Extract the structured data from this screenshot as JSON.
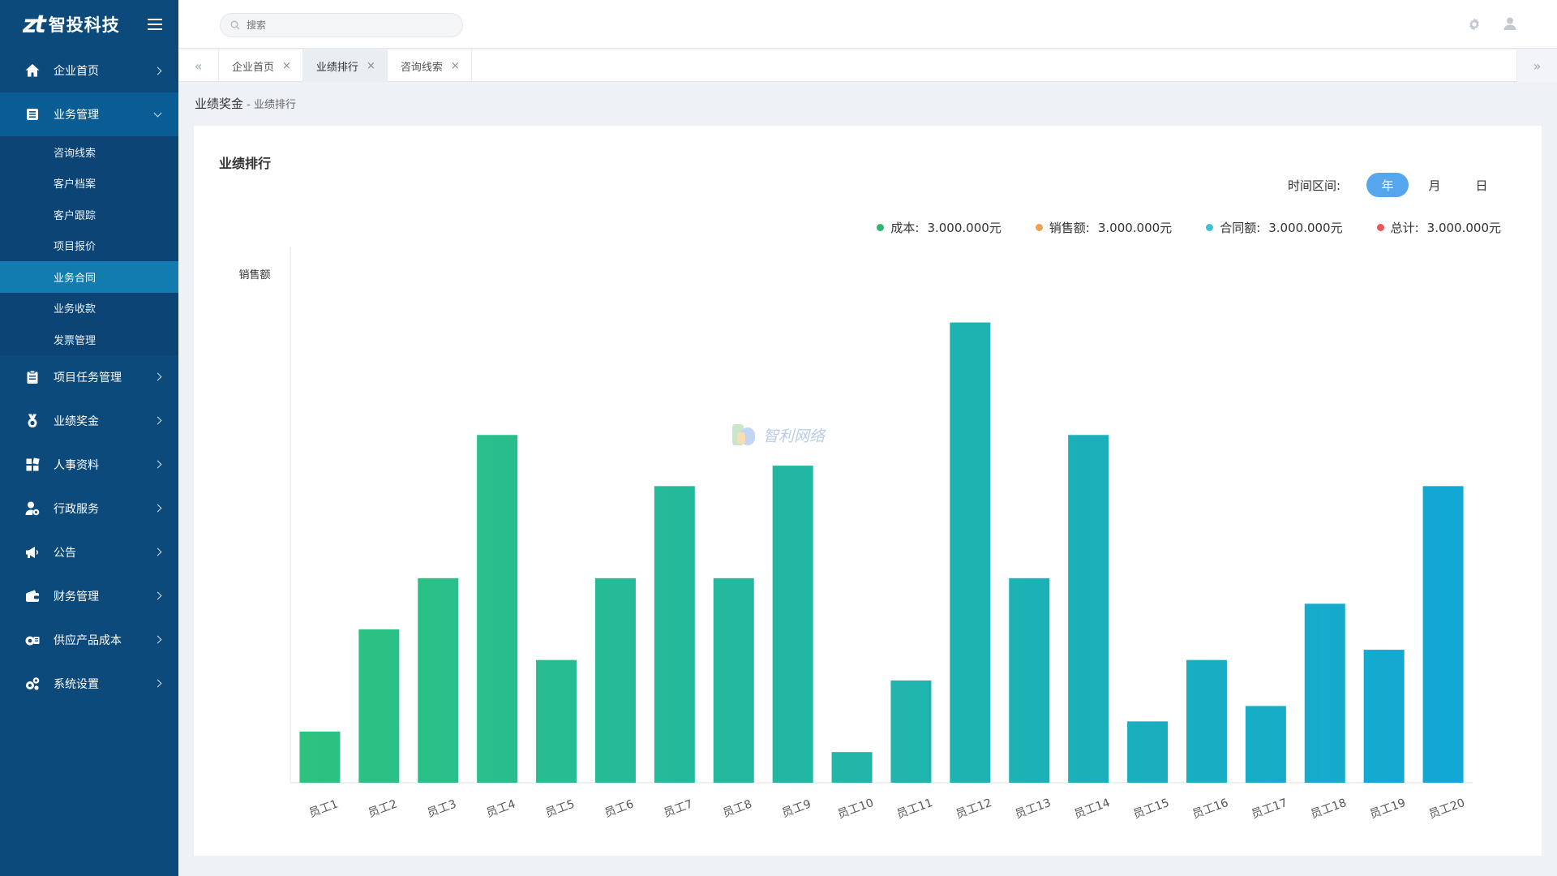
{
  "brand": {
    "mark": "zt",
    "name": "智投科技"
  },
  "search": {
    "placeholder": "搜索"
  },
  "sidebar": {
    "items": [
      {
        "label": "企业首页",
        "icon": "home-icon"
      },
      {
        "label": "业务管理",
        "icon": "list-icon",
        "open": true,
        "children": [
          "咨询线索",
          "客户档案",
          "客户跟踪",
          "项目报价",
          "业务合同",
          "业务收款",
          "发票管理"
        ],
        "active_child": "业务合同"
      },
      {
        "label": "项目任务管理",
        "icon": "clipboard-icon"
      },
      {
        "label": "业绩奖金",
        "icon": "medal-icon"
      },
      {
        "label": "人事资料",
        "icon": "grid-icon"
      },
      {
        "label": "行政服务",
        "icon": "user-gear-icon"
      },
      {
        "label": "公告",
        "icon": "megaphone-icon"
      },
      {
        "label": "财务管理",
        "icon": "wallet-icon"
      },
      {
        "label": "供应产品成本",
        "icon": "supply-icon"
      },
      {
        "label": "系统设置",
        "icon": "gears-icon"
      }
    ]
  },
  "tabs": [
    {
      "label": "企业首页",
      "close": "×",
      "active": false
    },
    {
      "label": "业绩排行",
      "close": "×",
      "active": true
    },
    {
      "label": "咨询线索",
      "close": "×",
      "active": false
    }
  ],
  "tab_nav": {
    "prev": "«",
    "next": "»"
  },
  "breadcrumb": {
    "parent": "业绩奖金",
    "sep": " - ",
    "current": "业绩排行"
  },
  "card": {
    "title": "业绩排行",
    "period_label": "时间区间:",
    "periods": [
      "年",
      "月",
      "日"
    ],
    "active_period": "年"
  },
  "legend": [
    {
      "label": "成本:",
      "value": "3.000.000元",
      "color": "#2bb673"
    },
    {
      "label": "销售额:",
      "value": "3.000.000元",
      "color": "#f0a04b"
    },
    {
      "label": "合同额:",
      "value": "3.000.000元",
      "color": "#3cc1d6"
    },
    {
      "label": "总计:",
      "value": "3.000.000元",
      "color": "#e8575a"
    }
  ],
  "watermark": "智利网络",
  "chart_data": {
    "type": "bar",
    "ylabel": "销售额",
    "categories": [
      "员工1",
      "员工2",
      "员工3",
      "员工4",
      "员工5",
      "员工6",
      "员工7",
      "员工8",
      "员工9",
      "员工10",
      "员工11",
      "员工12",
      "员工13",
      "员工14",
      "员工15",
      "员工16",
      "员工17",
      "员工18",
      "员工19",
      "员工20"
    ],
    "values": [
      10,
      30,
      40,
      68,
      24,
      40,
      58,
      40,
      62,
      6,
      20,
      90,
      40,
      68,
      12,
      24,
      15,
      35,
      26,
      58
    ],
    "ylim": [
      0,
      105
    ],
    "grid": false,
    "colors": {
      "start": "#2ec27e",
      "end": "#12a7d6"
    }
  }
}
